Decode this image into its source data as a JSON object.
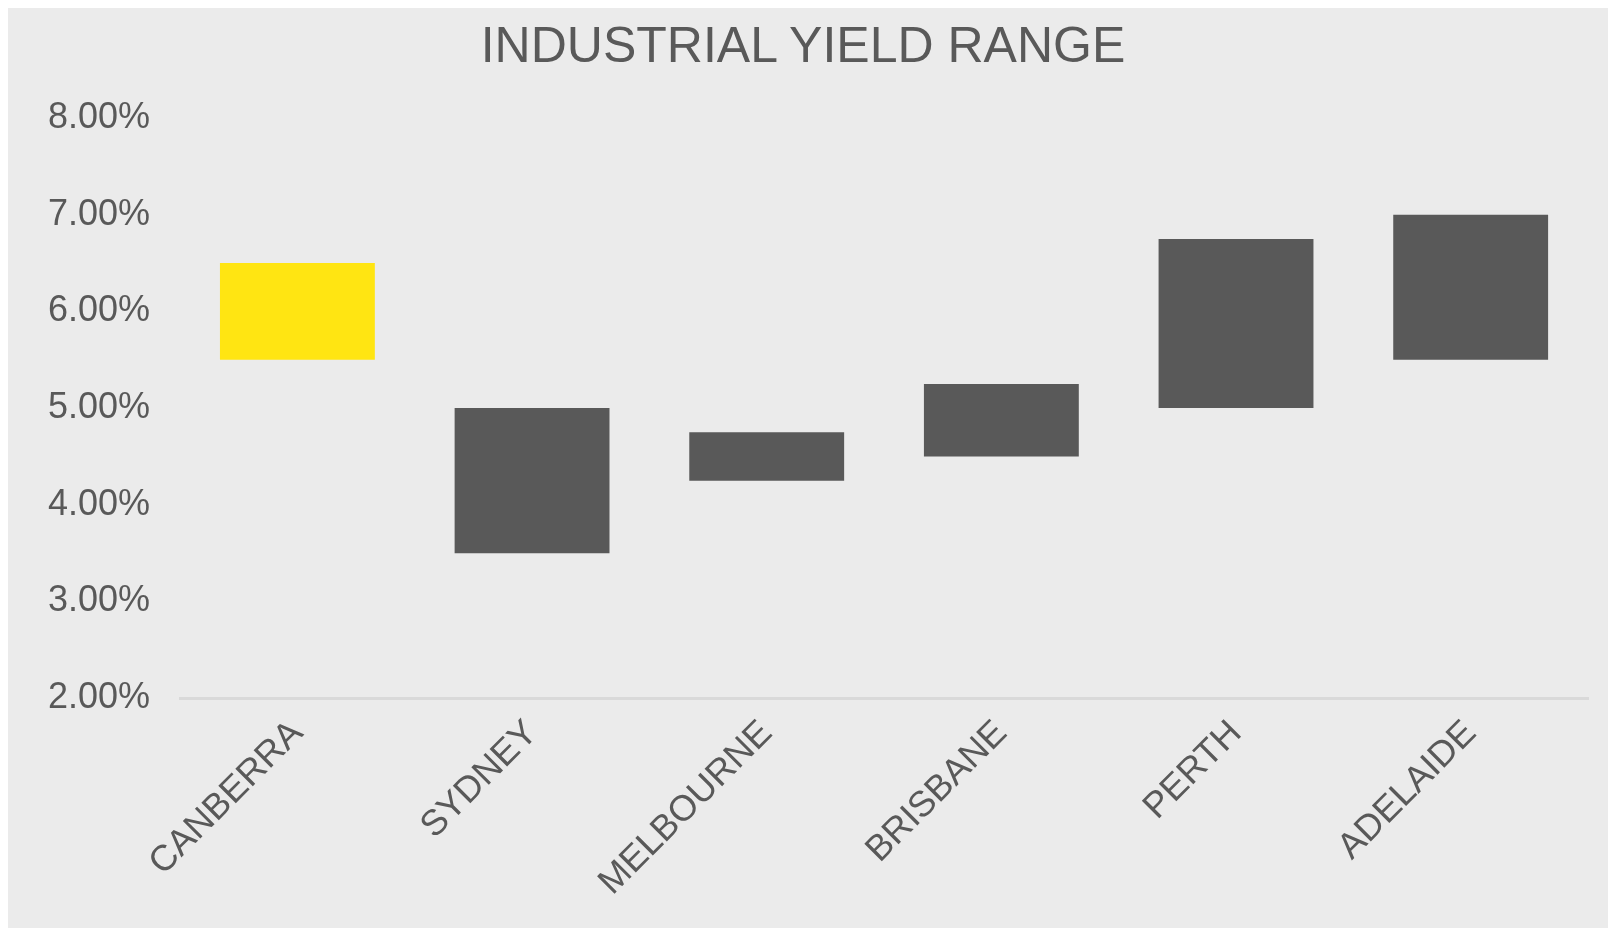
{
  "chart_data": {
    "type": "bar",
    "title": "INDUSTRIAL YIELD RANGE",
    "categories": [
      "CANBERRA",
      "SYDNEY",
      "MELBOURNE",
      "BRISBANE",
      "PERTH",
      "ADELAIDE"
    ],
    "base": [
      5.5,
      3.5,
      4.25,
      4.5,
      5.0,
      5.5
    ],
    "values": [
      1.0,
      1.5,
      0.5,
      0.75,
      1.75,
      1.5
    ],
    "colors": [
      "#ffe512",
      "#595959",
      "#595959",
      "#595959",
      "#595959",
      "#595959"
    ],
    "ylim": [
      2,
      8
    ],
    "yticks": [
      {
        "value": 2,
        "label": "2.00%"
      },
      {
        "value": 3,
        "label": "3.00%"
      },
      {
        "value": 4,
        "label": "4.00%"
      },
      {
        "value": 5,
        "label": "5.00%"
      },
      {
        "value": 6,
        "label": "6.00%"
      },
      {
        "value": 7,
        "label": "7.00%"
      },
      {
        "value": 8,
        "label": "8.00%"
      }
    ],
    "grid": false,
    "legend": false
  }
}
